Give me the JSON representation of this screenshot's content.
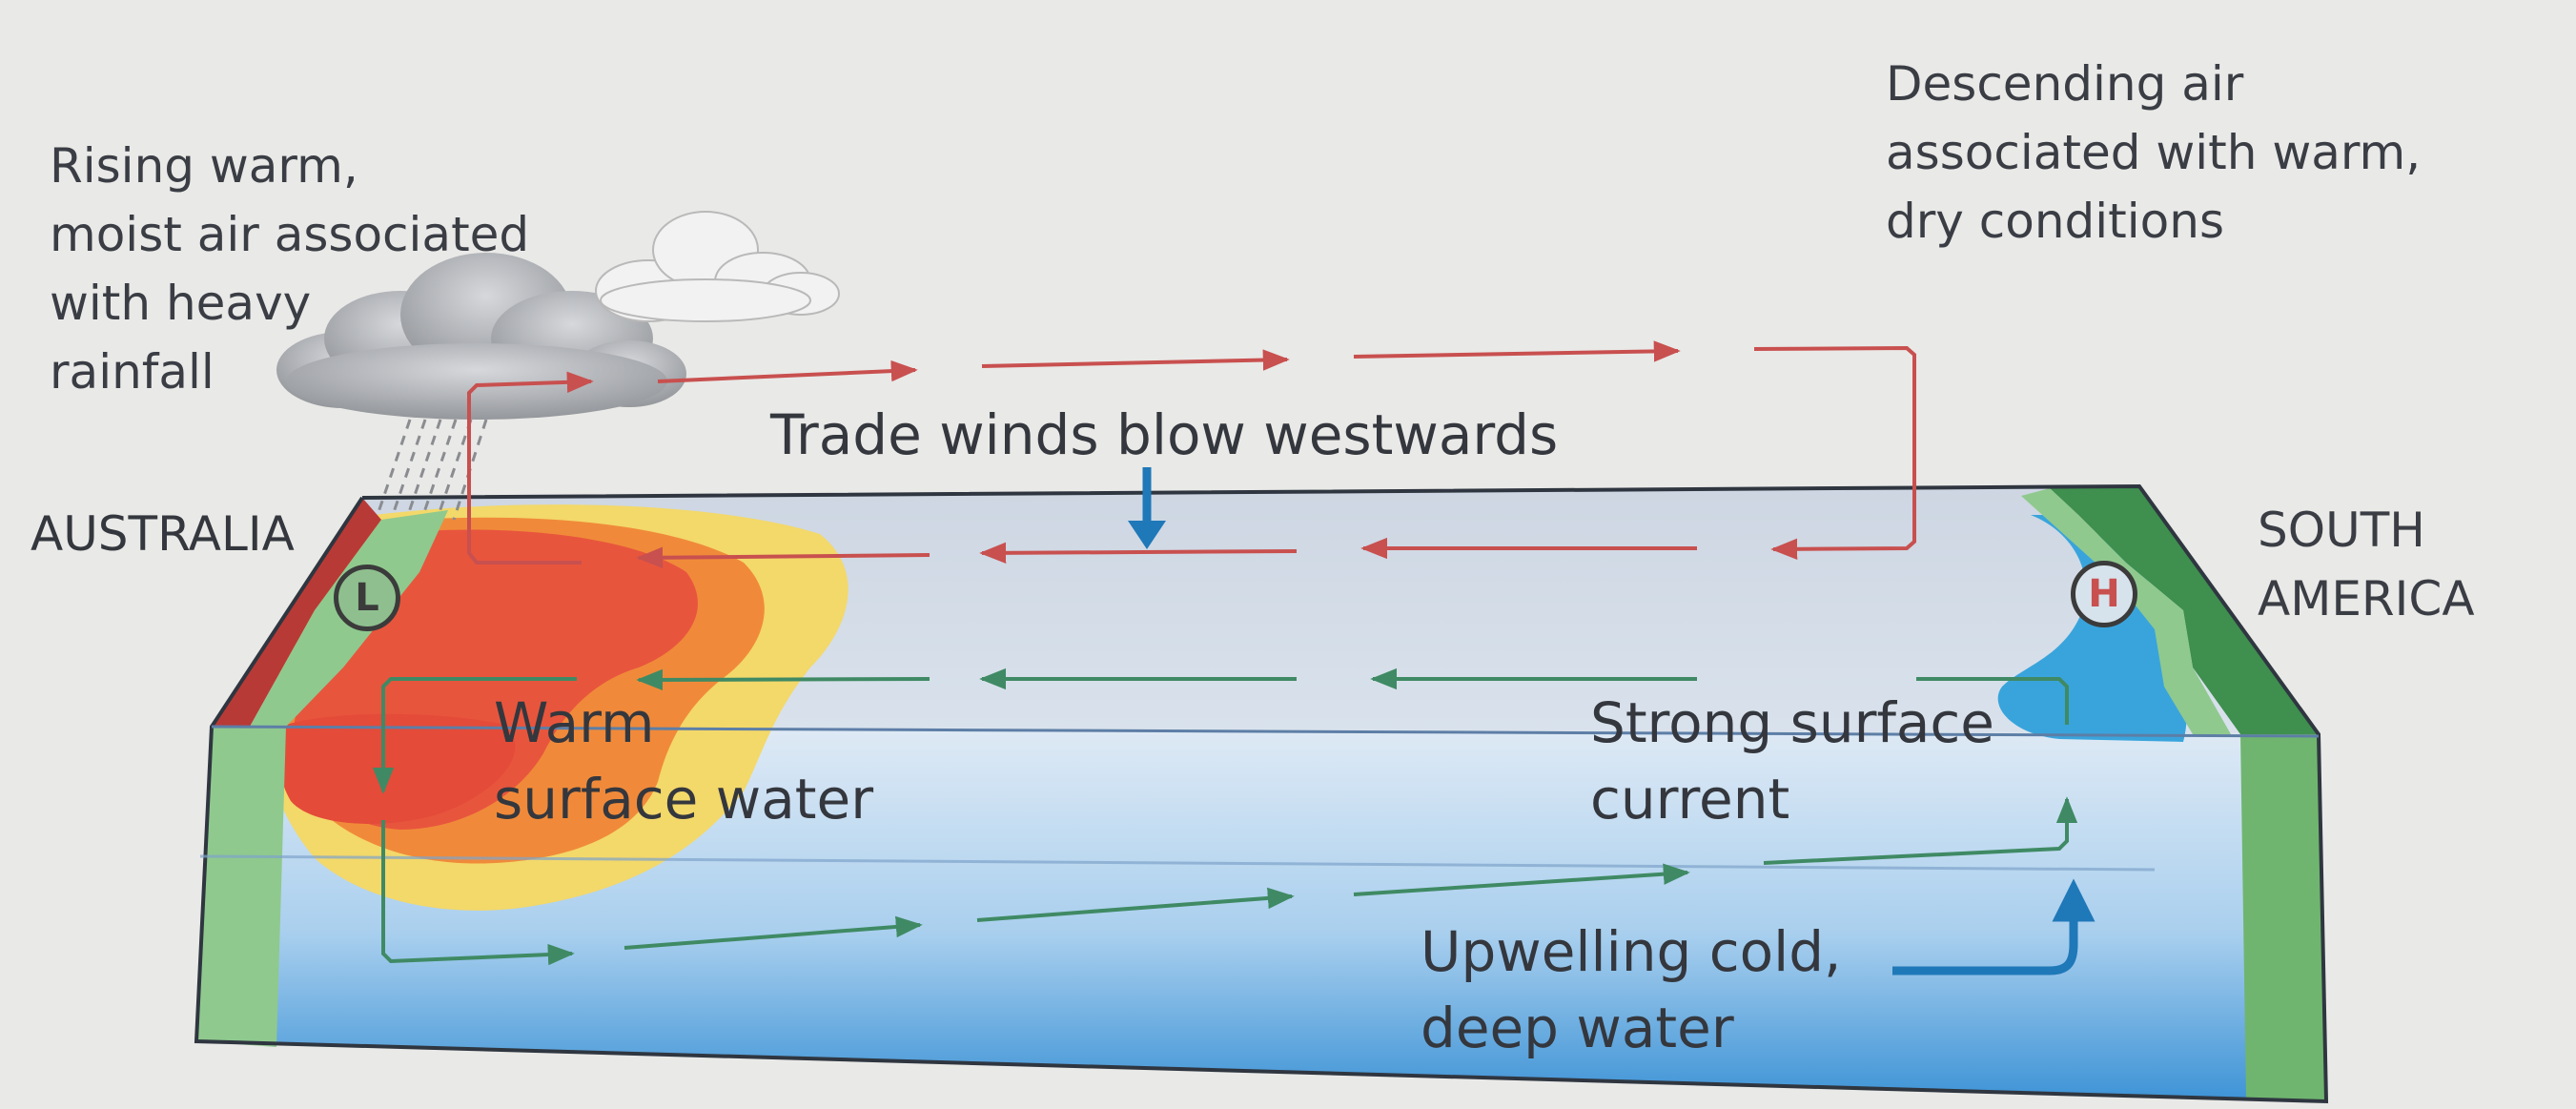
{
  "labels": {
    "rising_air": [
      "Rising warm,",
      "moist air associated",
      "with heavy",
      "rainfall"
    ],
    "descending_air": [
      "Descending air",
      "associated with warm,",
      "dry conditions"
    ],
    "trade_winds": "Trade winds blow westwards",
    "australia": "AUSTRALIA",
    "south_america": [
      "SOUTH",
      "AMERICA"
    ],
    "warm_water": [
      "Warm",
      "surface water"
    ],
    "surface_current": [
      "Strong surface",
      "current"
    ],
    "upwelling": [
      "Upwelling cold,",
      "deep water"
    ]
  },
  "pressure": {
    "low": "L",
    "high": "H"
  },
  "colors": {
    "air_arrows": "#c8504f",
    "current_arrows": "#3f8a64",
    "upwelling_arrow": "#1f78b8",
    "warm_core": "#e8553d",
    "warm_mid": "#f08a3a",
    "warm_edge": "#f3d86a",
    "cold_water": "#39a4dc",
    "land_green": "#3f8f4f",
    "land_light": "#8fc98e",
    "land_red": "#b83a36",
    "ocean_top": "#cfd9e6",
    "ocean_front": "#cfe2f2"
  }
}
